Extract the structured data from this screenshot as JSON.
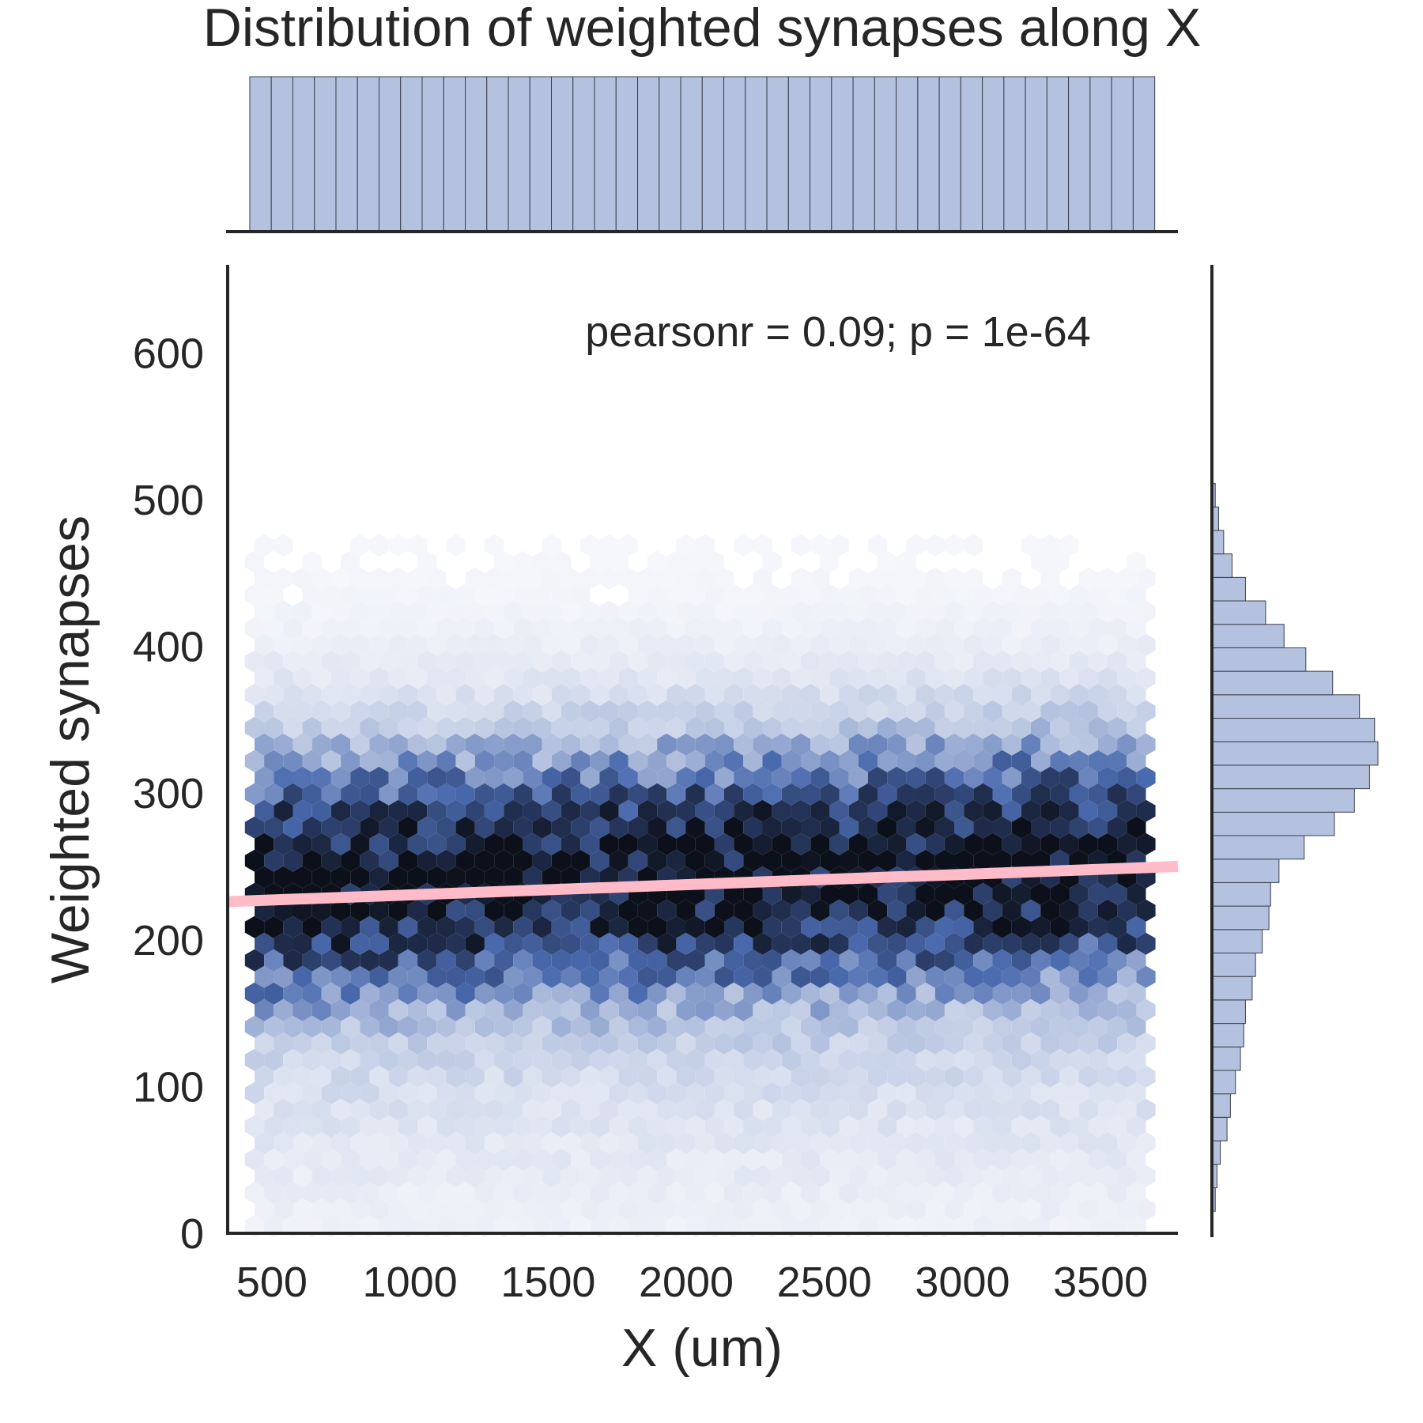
{
  "chart_data": {
    "type": "hexbin",
    "title": "Distribution of weighted synapses along X",
    "xlabel": "X (um)",
    "ylabel": "Weighted synapses",
    "annotation": "pearsonr = 0.09; p = 1e-64",
    "xlim": [
      340,
      3780
    ],
    "ylim": [
      0,
      660
    ],
    "x_ticks": [
      500,
      1000,
      1500,
      2000,
      2500,
      3000,
      3500
    ],
    "y_ticks": [
      0,
      100,
      200,
      300,
      400,
      500,
      600
    ],
    "grid": false,
    "density_colormap": [
      "#f8f9fc",
      "#b4c2df",
      "#4a6aae",
      "#25355b",
      "#0c101a"
    ],
    "x_range_of_data": [
      420,
      3700
    ],
    "regression": {
      "x": [
        340,
        3780
      ],
      "y": [
        226,
        250
      ],
      "color": "#ffbcc8"
    },
    "x_marginal": {
      "bin_edges_start": 420,
      "bin_width": 78,
      "counts": [
        100,
        100,
        100,
        100,
        100,
        100,
        100,
        100,
        100,
        100,
        100,
        100,
        100,
        100,
        100,
        100,
        100,
        100,
        100,
        100,
        100,
        100,
        100,
        100,
        100,
        100,
        100,
        100,
        100,
        100,
        100,
        100,
        100,
        100,
        100,
        100,
        100,
        100,
        100,
        100,
        100,
        100
      ],
      "color": "#b4c2df"
    },
    "y_marginal": {
      "bin_edges_start": 15,
      "bin_width": 16,
      "counts": [
        2,
        3,
        5,
        9,
        11,
        14,
        17,
        19,
        20,
        24,
        26,
        30,
        34,
        35,
        40,
        55,
        73,
        85,
        94,
        99,
        97,
        88,
        72,
        56,
        43,
        32,
        20,
        12,
        7,
        4,
        2
      ],
      "color": "#b4c2df"
    }
  }
}
